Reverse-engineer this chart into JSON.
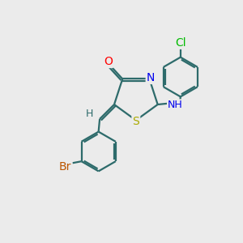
{
  "bg_color": "#ebebeb",
  "atom_colors": {
    "O": "#ff0000",
    "N": "#0000ee",
    "S": "#aaaa00",
    "Br": "#bb5500",
    "Cl": "#00bb00",
    "C": "#2d6b6b",
    "H": "#2d6b6b"
  },
  "bond_color": "#2d6b6b",
  "font_size": 9,
  "lw": 1.6
}
